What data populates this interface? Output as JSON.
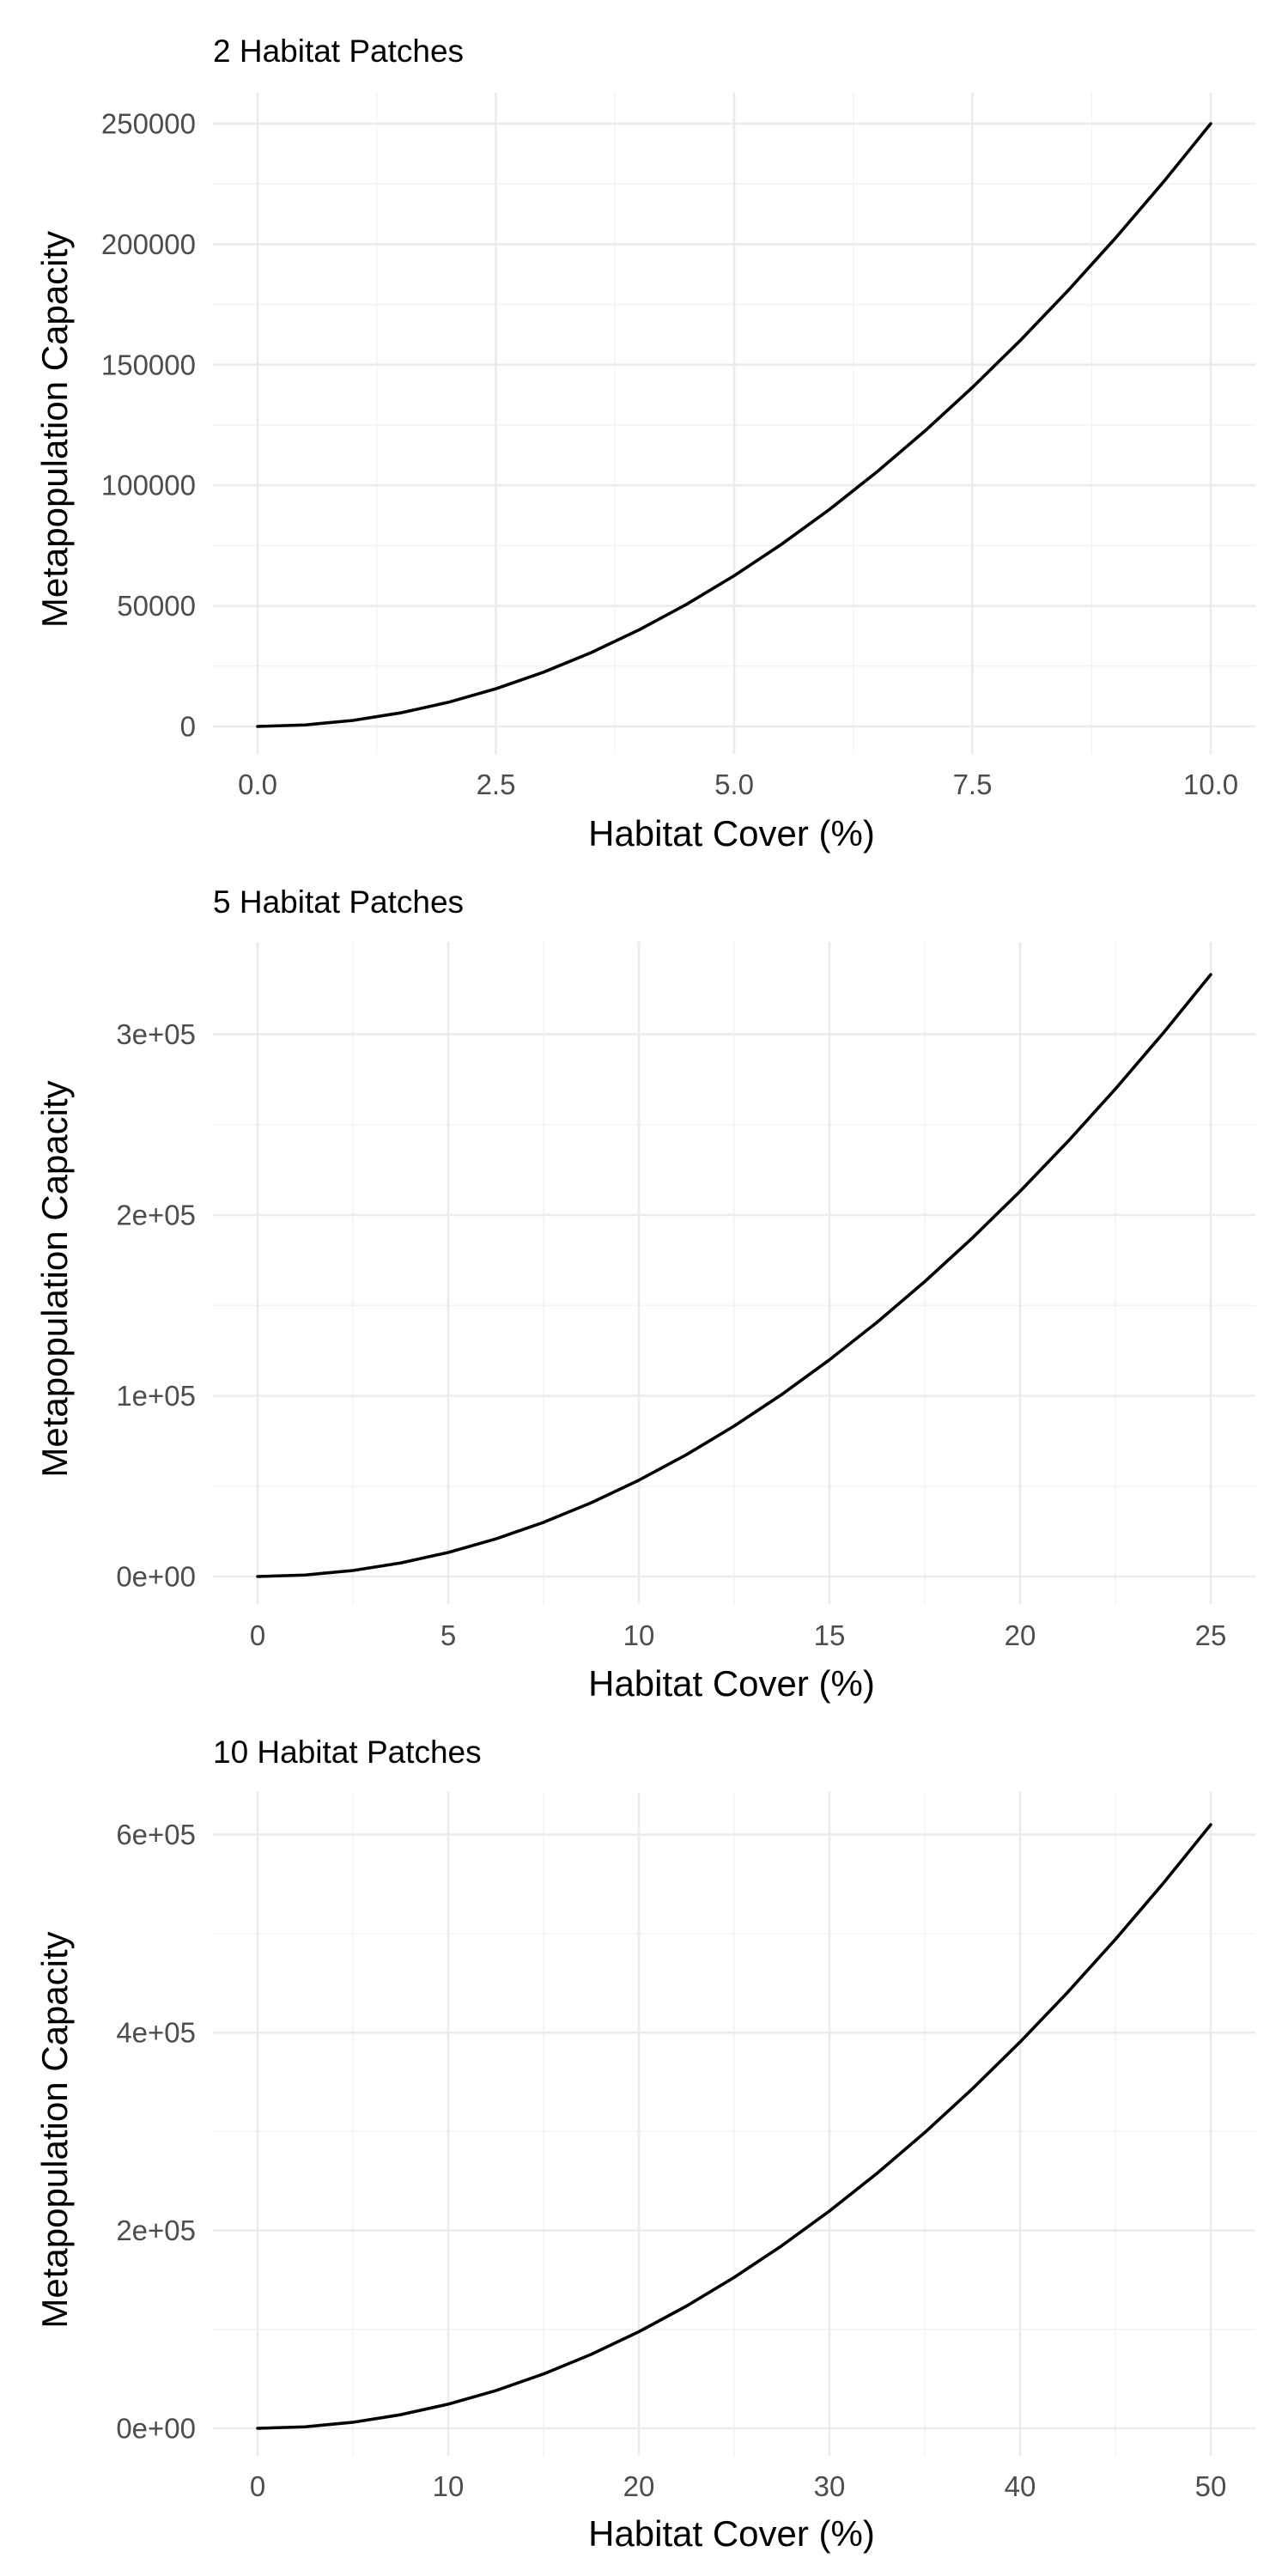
{
  "chart_data": [
    {
      "type": "line",
      "title": "2 Habitat Patches",
      "xlabel": "Habitat Cover (%)",
      "ylabel": "Metapopulation Capacity",
      "xlim": [
        0,
        10
      ],
      "ylim": [
        0,
        250000
      ],
      "xticks": [
        0,
        2.5,
        5,
        7.5,
        10
      ],
      "xtick_labels": [
        "0.0",
        "2.5",
        "5.0",
        "7.5",
        "10.0"
      ],
      "yticks": [
        0,
        50000,
        100000,
        150000,
        200000,
        250000
      ],
      "ytick_labels": [
        "0",
        "50000",
        "100000",
        "150000",
        "200000",
        "250000"
      ],
      "grid": true,
      "series": [
        {
          "x": [
            0,
            0.5,
            1,
            1.5,
            2,
            2.5,
            3,
            3.5,
            4,
            4.5,
            5,
            5.5,
            6,
            6.5,
            7,
            7.5,
            8,
            8.5,
            9,
            9.5,
            10
          ],
          "values": [
            0,
            625,
            2500,
            5625,
            10000,
            15625,
            22500,
            30625,
            40000,
            50625,
            62500,
            75625,
            90000,
            105625,
            122500,
            140625,
            160000,
            180625,
            202500,
            225625,
            250000
          ]
        }
      ]
    },
    {
      "type": "line",
      "title": "5 Habitat Patches",
      "xlabel": "Habitat Cover (%)",
      "ylabel": "Metapopulation Capacity",
      "xlim": [
        0,
        25
      ],
      "ylim": [
        0,
        333000
      ],
      "xticks": [
        0,
        5,
        10,
        15,
        20,
        25
      ],
      "xtick_labels": [
        "0",
        "5",
        "10",
        "15",
        "20",
        "25"
      ],
      "yticks": [
        0,
        100000,
        200000,
        300000
      ],
      "ytick_labels": [
        "0e+00",
        "1e+05",
        "2e+05",
        "3e+05"
      ],
      "grid": true,
      "series": [
        {
          "x": [
            0,
            1.25,
            2.5,
            3.75,
            5,
            6.25,
            7.5,
            8.75,
            10,
            11.25,
            12.5,
            13.75,
            15,
            16.25,
            17.5,
            18.75,
            20,
            21.25,
            22.5,
            23.75,
            25
          ],
          "values": [
            0,
            833,
            3330,
            7493,
            13320,
            20813,
            29970,
            40793,
            53280,
            67433,
            83250,
            100733,
            119880,
            140693,
            163170,
            187313,
            213120,
            240593,
            269730,
            300533,
            333000
          ]
        }
      ]
    },
    {
      "type": "line",
      "title": "10 Habitat Patches",
      "xlabel": "Habitat Cover (%)",
      "ylabel": "Metapopulation Capacity",
      "xlim": [
        0,
        50
      ],
      "ylim": [
        0,
        610000
      ],
      "xticks": [
        0,
        10,
        20,
        30,
        40,
        50
      ],
      "xtick_labels": [
        "0",
        "10",
        "20",
        "30",
        "40",
        "50"
      ],
      "yticks": [
        0,
        200000,
        400000,
        600000
      ],
      "ytick_labels": [
        "0e+00",
        "2e+05",
        "4e+05",
        "6e+05"
      ],
      "grid": true,
      "series": [
        {
          "x": [
            0,
            2.5,
            5,
            7.5,
            10,
            12.5,
            15,
            17.5,
            20,
            22.5,
            25,
            27.5,
            30,
            32.5,
            35,
            37.5,
            40,
            42.5,
            45,
            47.5,
            50
          ],
          "values": [
            0,
            1525,
            6100,
            13725,
            24400,
            38125,
            54900,
            74725,
            97600,
            123525,
            152500,
            184525,
            219600,
            257725,
            298900,
            343125,
            390400,
            440725,
            494100,
            550525,
            610000
          ]
        }
      ]
    }
  ]
}
